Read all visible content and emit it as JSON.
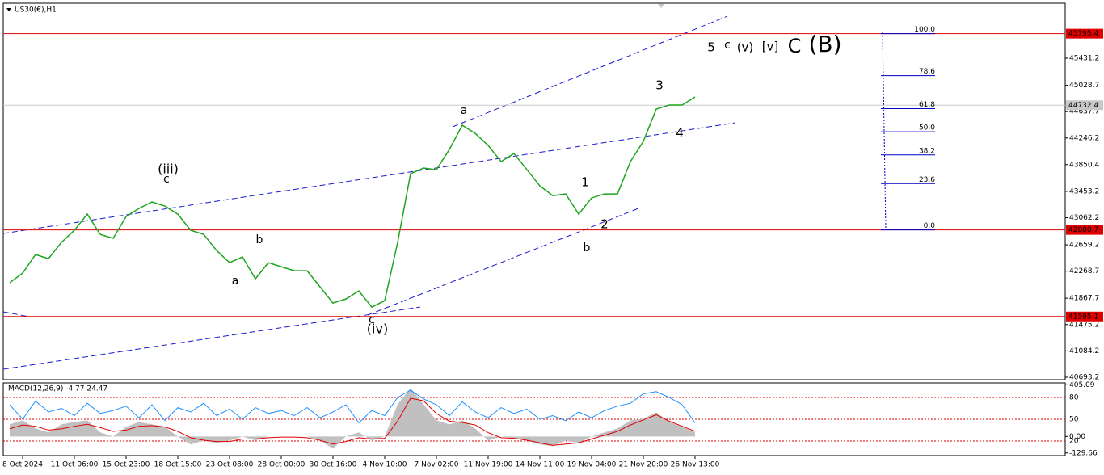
{
  "chart_data": [
    {
      "type": "line",
      "title": "US30(€),H1",
      "color": "#1fa51f",
      "categories": [
        null,
        "8 Oct 2024",
        null,
        null,
        null,
        "11 Oct 06:00",
        null,
        null,
        null,
        "15 Oct 23:00",
        null,
        null,
        null,
        "18 Oct 15:00",
        null,
        null,
        null,
        "23 Oct 08:00",
        null,
        null,
        null,
        "28 Oct 00:00",
        null,
        null,
        null,
        "30 Oct 16:00",
        null,
        null,
        null,
        "4 Nov 10:00",
        null,
        null,
        null,
        "7 Nov 02:00",
        null,
        null,
        null,
        "11 Nov 19:00",
        null,
        null,
        null,
        "14 Nov 11:00",
        null,
        null,
        null,
        "19 Nov 04:00",
        null,
        null,
        null,
        "21 Nov 20:00",
        null,
        null,
        null,
        "26 Nov 13:00"
      ],
      "values": [
        42096,
        42240,
        42515,
        42455,
        42695,
        42875,
        43115,
        42815,
        42755,
        43080,
        43200,
        43295,
        43235,
        43115,
        42875,
        42815,
        42575,
        42395,
        42480,
        42155,
        42395,
        42335,
        42275,
        42275,
        42035,
        41795,
        41855,
        41975,
        41735,
        41830,
        42695,
        43715,
        43800,
        43775,
        44075,
        44435,
        44315,
        44135,
        43895,
        44015,
        43775,
        43535,
        43390,
        43415,
        43115,
        43355,
        43415,
        43415,
        43895,
        44195,
        44675,
        44735,
        44735,
        44855
      ],
      "ylim": [
        40657,
        46247
      ],
      "yticks": [
        45431.2,
        45028.7,
        44637.7,
        44246.2,
        43850.4,
        43453.2,
        43062.2,
        42659.2,
        42268.7,
        41867.7,
        41475.2,
        41084.2,
        40693.2
      ],
      "hlines": [
        {
          "value": 45795.4,
          "color": "#e00000"
        },
        {
          "value": 44732.4,
          "color": "#c8c8c8"
        },
        {
          "value": 42880.7,
          "color": "#e00000"
        },
        {
          "value": 41595.1,
          "color": "#e00000"
        }
      ],
      "fib": {
        "color": "#0000c8",
        "levels": [
          {
            "value": 100,
            "label": "100.0"
          },
          78.6,
          61.8,
          {
            "value": 50,
            "label": "50.0"
          },
          38.2,
          23.6,
          {
            "value": 0,
            "label": "0.0"
          }
        ]
      },
      "annotations": [
        {
          "text": "(iii)",
          "color": "#1a1ae6"
        },
        {
          "text": "c",
          "color": "#e619e6"
        },
        {
          "text": "b",
          "color": "#e619e6"
        },
        {
          "text": "a",
          "color": "#e619e6"
        },
        {
          "text": "c",
          "color": "#e619e6"
        },
        {
          "text": "(iv)",
          "color": "#1a1ae6"
        },
        {
          "text": "a",
          "color": "#e619e6"
        },
        {
          "text": "1",
          "color": "#111111"
        },
        {
          "text": "2",
          "color": "#111111"
        },
        {
          "text": "b",
          "color": "#e619e6"
        },
        {
          "text": "3",
          "color": "#111111"
        },
        {
          "text": "4",
          "color": "#111111"
        },
        {
          "text": "5",
          "color": "#111111"
        },
        {
          "text": "c",
          "color": "#e619e6"
        },
        {
          "text": "(v)",
          "color": "#1a1ae6"
        },
        {
          "text": "[v]",
          "color": "#1a8a1a"
        },
        {
          "text": "C",
          "color": "#1a50e6"
        },
        {
          "text": "(B)",
          "color": "#e01010"
        }
      ]
    },
    {
      "type": "macd",
      "title": "MACD(12,26,9) -4.77 24.47",
      "ylim": [
        -150,
        420
      ],
      "yticks": [
        405.09,
        {
          "value": 0,
          "label": "0.00"
        },
        -129.66
      ],
      "y2lim": [
        0,
        100
      ],
      "y2ticks": [
        80,
        50,
        20
      ],
      "level_color": "#e00000",
      "series": [
        {
          "style": "area",
          "color": "#c0c0c0",
          "values": [
            95,
            126,
            63,
            32,
            95,
            114,
            126,
            32,
            0,
            76,
            114,
            95,
            76,
            0,
            -63,
            -32,
            -51,
            -32,
            0,
            -32,
            0,
            0,
            0,
            0,
            -32,
            -95,
            0,
            32,
            -32,
            0,
            253,
            380,
            253,
            126,
            95,
            126,
            63,
            -32,
            0,
            -13,
            -32,
            -63,
            -76,
            -32,
            -51,
            0,
            32,
            63,
            126,
            139,
            190,
            114,
            76,
            32
          ]
        },
        {
          "style": "line",
          "color": "#e00000",
          "values": [
            60,
            90,
            80,
            50,
            60,
            80,
            95,
            70,
            40,
            50,
            80,
            85,
            75,
            40,
            -10,
            -30,
            -40,
            -40,
            -20,
            -20,
            -10,
            -5,
            -5,
            -10,
            -30,
            -60,
            -40,
            -10,
            -20,
            -15,
            120,
            300,
            280,
            180,
            120,
            110,
            90,
            30,
            -10,
            -15,
            -30,
            -50,
            -70,
            -60,
            -50,
            -20,
            10,
            40,
            90,
            130,
            170,
            120,
            80,
            40
          ]
        },
        {
          "style": "line",
          "color": "#1e90ff",
          "axis": "y2",
          "values": [
            70,
            50,
            75,
            60,
            65,
            55,
            72,
            58,
            62,
            68,
            52,
            70,
            48,
            66,
            60,
            72,
            55,
            64,
            50,
            66,
            58,
            62,
            55,
            66,
            52,
            60,
            70,
            45,
            62,
            55,
            80,
            90,
            78,
            70,
            55,
            74,
            60,
            52,
            66,
            58,
            64,
            50,
            55,
            48,
            60,
            52,
            62,
            68,
            72,
            85,
            88,
            80,
            70,
            45
          ]
        }
      ]
    }
  ]
}
